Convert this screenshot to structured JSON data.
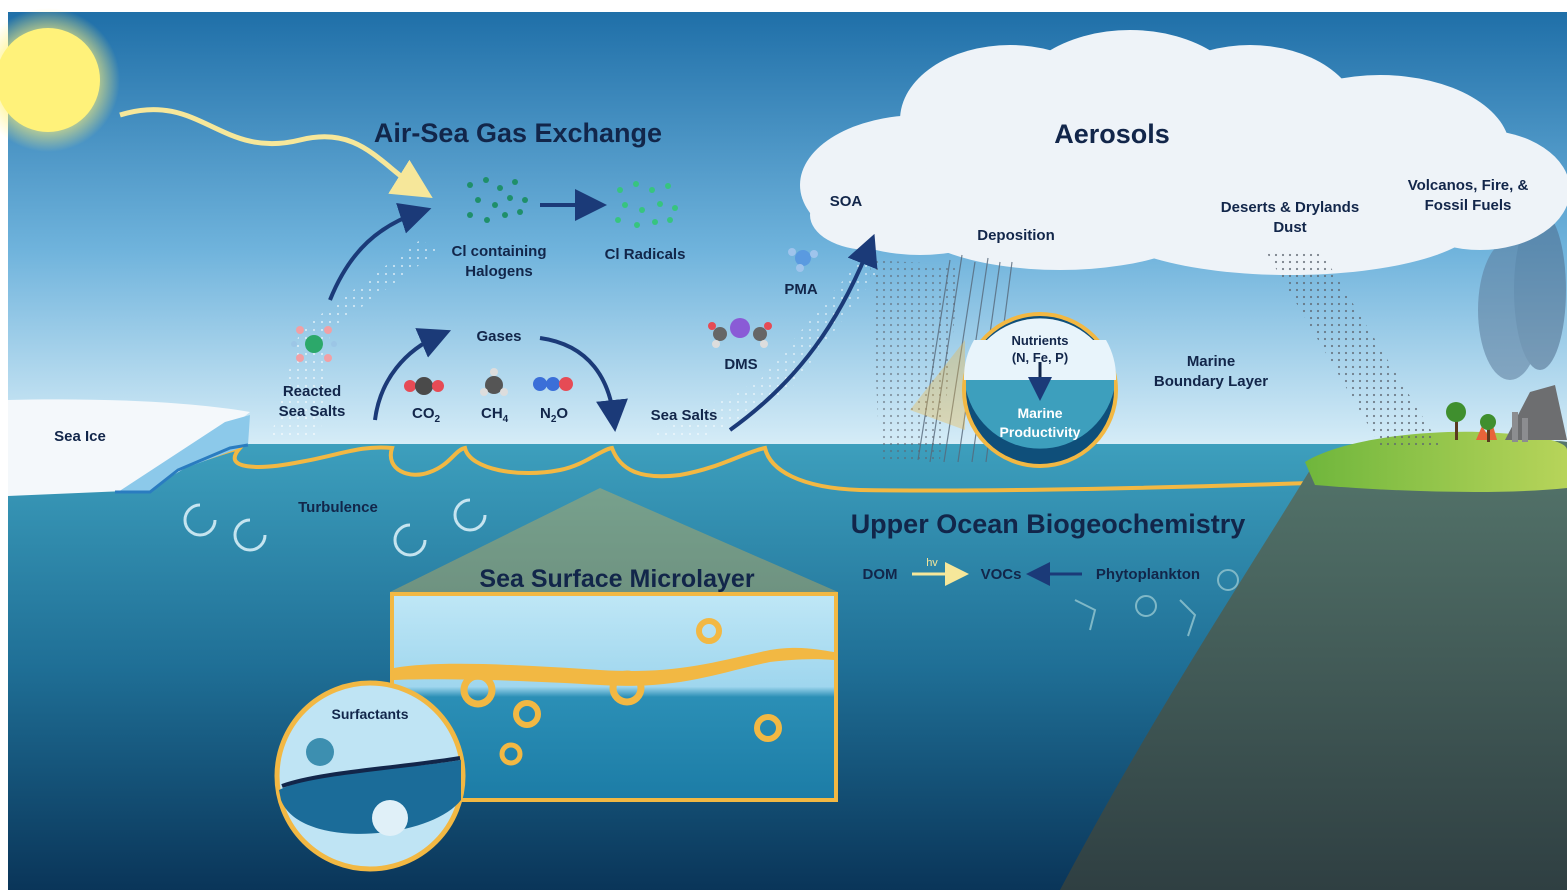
{
  "titles": {
    "air_sea": "Air-Sea Gas Exchange",
    "aerosols": "Aerosols",
    "upper_ocean": "Upper Ocean Biogeochemistry",
    "ssml": "Sea Surface Microlayer"
  },
  "labels": {
    "sea_ice": "Sea Ice",
    "reacted_1": "Reacted",
    "reacted_2": "Sea Salts",
    "cl_halogens_1": "Cl containing",
    "cl_halogens_2": "Halogens",
    "cl_radicals": "Cl Radicals",
    "gases": "Gases",
    "co2": "CO",
    "co2_sub": "2",
    "ch4": "CH",
    "ch4_sub": "4",
    "n2o_n": "N",
    "n2o_sub": "2",
    "n2o_o": "O",
    "sea_salts": "Sea Salts",
    "turbulence": "Turbulence",
    "soa": "SOA",
    "pma": "PMA",
    "dms": "DMS",
    "deposition": "Deposition",
    "nutrients_1": "Nutrients",
    "nutrients_2": "(N, Fe, P)",
    "productivity_1": "Marine",
    "productivity_2": "Productivity",
    "mbl_1": "Marine",
    "mbl_2": "Boundary Layer",
    "deserts_1": "Deserts & Drylands",
    "deserts_2": "Dust",
    "volcanos_1": "Volcanos, Fire, &",
    "volcanos_2": "Fossil Fuels",
    "dom": "DOM",
    "hv": "hv",
    "vocs": "VOCs",
    "phytoplankton": "Phytoplankton",
    "surfactants": "Surfactants"
  },
  "colors": {
    "sky_top": "#1f6fa8",
    "sky_horizon": "#d5ecf7",
    "ocean_surface": "#3d9fbd",
    "ocean_deep": "#0c3e66",
    "microlayer": "#f2b843",
    "text": "#12264a",
    "arrow": "#1b3a78",
    "sun": "#fff27a",
    "land": "#3f5f5c"
  }
}
